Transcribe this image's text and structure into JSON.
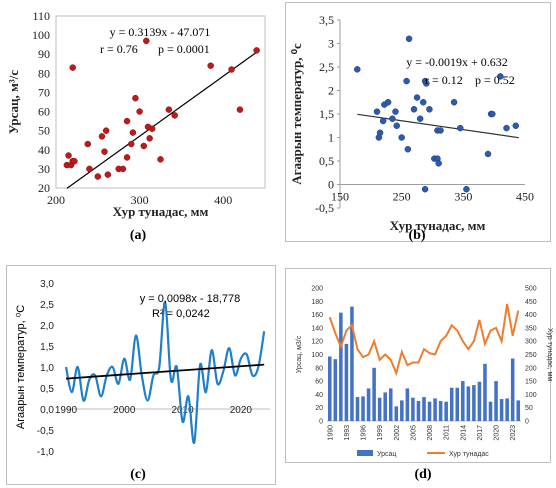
{
  "captions": [
    "(a)",
    "(b)",
    "(c)",
    "(d)"
  ],
  "chart_data": [
    {
      "id": "a",
      "type": "scatter",
      "xlabel": "Хур тунадас, мм",
      "ylabel": "Урсац, м³/с",
      "xlim": [
        200,
        450
      ],
      "ylim": [
        20,
        110
      ],
      "xticks": [
        "200",
        "300",
        "400"
      ],
      "yticks": [
        "20",
        "30",
        "40",
        "50",
        "60",
        "70",
        "80",
        "90",
        "100",
        "110"
      ],
      "annotations": {
        "equation": "y = 0.3139x - 47.071",
        "r": "r = 0.76",
        "p": "p = 0.0001"
      },
      "trendline": {
        "slope": 0.3139,
        "intercept": -47.071
      },
      "points": [
        [
          213,
          32
        ],
        [
          215,
          37
        ],
        [
          218,
          32
        ],
        [
          220,
          34
        ],
        [
          220,
          83
        ],
        [
          222,
          34
        ],
        [
          238,
          43
        ],
        [
          240,
          30
        ],
        [
          250,
          26
        ],
        [
          255,
          47
        ],
        [
          258,
          39
        ],
        [
          260,
          50
        ],
        [
          262,
          27
        ],
        [
          275,
          30
        ],
        [
          280,
          30
        ],
        [
          285,
          36
        ],
        [
          285,
          55
        ],
        [
          290,
          43
        ],
        [
          292,
          49
        ],
        [
          295,
          67
        ],
        [
          300,
          60
        ],
        [
          305,
          42
        ],
        [
          308,
          97
        ],
        [
          310,
          52
        ],
        [
          312,
          46
        ],
        [
          315,
          51
        ],
        [
          325,
          35
        ],
        [
          335,
          61
        ],
        [
          342,
          58
        ],
        [
          385,
          84
        ],
        [
          410,
          82
        ],
        [
          420,
          61
        ],
        [
          440,
          92
        ]
      ],
      "marker_color": "#c0191b"
    },
    {
      "id": "b",
      "type": "scatter",
      "xlabel": "Хур тунадас, мм",
      "ylabel": "Агаарын температур, ⁰с",
      "xlim": [
        150,
        450
      ],
      "ylim": [
        -0.5,
        3.5
      ],
      "xticks": [
        "150",
        "250",
        "350",
        "450"
      ],
      "yticks": [
        "-0,5",
        "0",
        "0,5",
        "1",
        "1,5",
        "2",
        "2,5",
        "3",
        "3,5"
      ],
      "annotations": {
        "equation": "y = -0.0019x + 0.632",
        "r": "r = 0.12",
        "p": "p = 0.52"
      },
      "trendline": {
        "slope": -0.0019,
        "intercept": 0.632
      },
      "points": [
        [
          178,
          2.45
        ],
        [
          210,
          1.55
        ],
        [
          213,
          1.0
        ],
        [
          215,
          1.1
        ],
        [
          220,
          1.35
        ],
        [
          222,
          1.7
        ],
        [
          228,
          1.75
        ],
        [
          235,
          1.4
        ],
        [
          240,
          1.55
        ],
        [
          242,
          1.25
        ],
        [
          250,
          1.0
        ],
        [
          258,
          2.2
        ],
        [
          260,
          0.75
        ],
        [
          262,
          3.1
        ],
        [
          270,
          1.6
        ],
        [
          275,
          1.85
        ],
        [
          280,
          1.4
        ],
        [
          285,
          1.75
        ],
        [
          288,
          2.2
        ],
        [
          290,
          2.15
        ],
        [
          295,
          1.6
        ],
        [
          303,
          0.55
        ],
        [
          308,
          0.55
        ],
        [
          308,
          1.15
        ],
        [
          310,
          0.45
        ],
        [
          313,
          1.15
        ],
        [
          335,
          1.75
        ],
        [
          345,
          1.2
        ],
        [
          355,
          -0.1
        ],
        [
          390,
          0.65
        ],
        [
          395,
          1.5
        ],
        [
          397,
          1.5
        ],
        [
          410,
          2.3
        ],
        [
          420,
          1.2
        ],
        [
          435,
          1.25
        ],
        [
          288,
          -0.1
        ]
      ],
      "marker_color": "#2e5aac"
    },
    {
      "id": "c",
      "type": "line",
      "xlabel": "",
      "ylabel": "Агаарын температур, ⁰С",
      "xlim": [
        1990,
        2025
      ],
      "ylim": [
        -1.0,
        3.0
      ],
      "xticks": [
        "1990",
        "2000",
        "2010",
        "2020"
      ],
      "yticks": [
        "-1,0",
        "-0,5",
        "0,0",
        "0,5",
        "1,0",
        "1,5",
        "2,0",
        "2,5",
        "3,0"
      ],
      "annotations": {
        "equation": "y = 0,0098x - 18,778",
        "r2": "R² = 0,0242"
      },
      "trendline": {
        "slope": 0.0098,
        "intercept": -18.778
      },
      "x": [
        1990,
        1991,
        1992,
        1993,
        1994,
        1995,
        1996,
        1997,
        1998,
        1999,
        2000,
        2001,
        2002,
        2003,
        2004,
        2005,
        2006,
        2007,
        2008,
        2009,
        2010,
        2011,
        2012,
        2013,
        2014,
        2015,
        2016,
        2017,
        2018,
        2019,
        2020,
        2021,
        2022,
        2023,
        2024
      ],
      "values": [
        1.0,
        0.4,
        1.0,
        0.2,
        0.7,
        0.8,
        0.3,
        0.8,
        1.0,
        0.6,
        1.2,
        0.7,
        1.75,
        0.8,
        0.2,
        0.8,
        1.0,
        2.55,
        0.7,
        1.0,
        -0.3,
        0.3,
        -0.8,
        1.05,
        0.4,
        1.4,
        0.6,
        0.9,
        1.45,
        0.8,
        1.2,
        1.3,
        0.8,
        1.0,
        1.85
      ],
      "line_color": "#1f7fc9"
    },
    {
      "id": "d",
      "type": "bar",
      "ylabel": "Урсац, м3/с",
      "y2label": "Хур тунадас, мм",
      "ylim": [
        0,
        200
      ],
      "y2lim": [
        0,
        500
      ],
      "yticks": [
        "0",
        "20",
        "40",
        "60",
        "80",
        "100",
        "120",
        "140",
        "160",
        "180",
        "200"
      ],
      "y2ticks": [
        "0",
        "50",
        "100",
        "150",
        "200",
        "250",
        "300",
        "350",
        "400",
        "450",
        "500"
      ],
      "xticks": [
        "1990",
        "1993",
        "1996",
        "1999",
        "2002",
        "2005",
        "2008",
        "2011",
        "2014",
        "2017",
        "2020",
        "2023"
      ],
      "categories": [
        "1990",
        "1991",
        "1992",
        "1993",
        "1994",
        "1995",
        "1996",
        "1997",
        "1998",
        "1999",
        "2000",
        "2001",
        "2002",
        "2003",
        "2004",
        "2005",
        "2006",
        "2007",
        "2008",
        "2009",
        "2010",
        "2011",
        "2012",
        "2013",
        "2014",
        "2015",
        "2016",
        "2017",
        "2018",
        "2019",
        "2020",
        "2021",
        "2022",
        "2023",
        "2024"
      ],
      "series": [
        {
          "name": "Урсац",
          "type": "bar",
          "axis": "left",
          "color": "#4472c4",
          "values": [
            97,
            93,
            163,
            116,
            172,
            36,
            37,
            49,
            80,
            35,
            43,
            49,
            22,
            31,
            49,
            35,
            30,
            36,
            29,
            34,
            30,
            29,
            50,
            50,
            60,
            52,
            54,
            59,
            86,
            29,
            60,
            33,
            34,
            94,
            31
          ]
        },
        {
          "name": "Хур тунадас",
          "type": "line",
          "axis": "right",
          "color": "#ed7d31",
          "values": [
            390,
            330,
            280,
            340,
            360,
            270,
            240,
            250,
            300,
            230,
            250,
            230,
            180,
            260,
            210,
            220,
            220,
            270,
            255,
            250,
            300,
            320,
            360,
            340,
            300,
            270,
            300,
            380,
            290,
            340,
            350,
            300,
            440,
            320,
            415
          ]
        }
      ]
    }
  ]
}
